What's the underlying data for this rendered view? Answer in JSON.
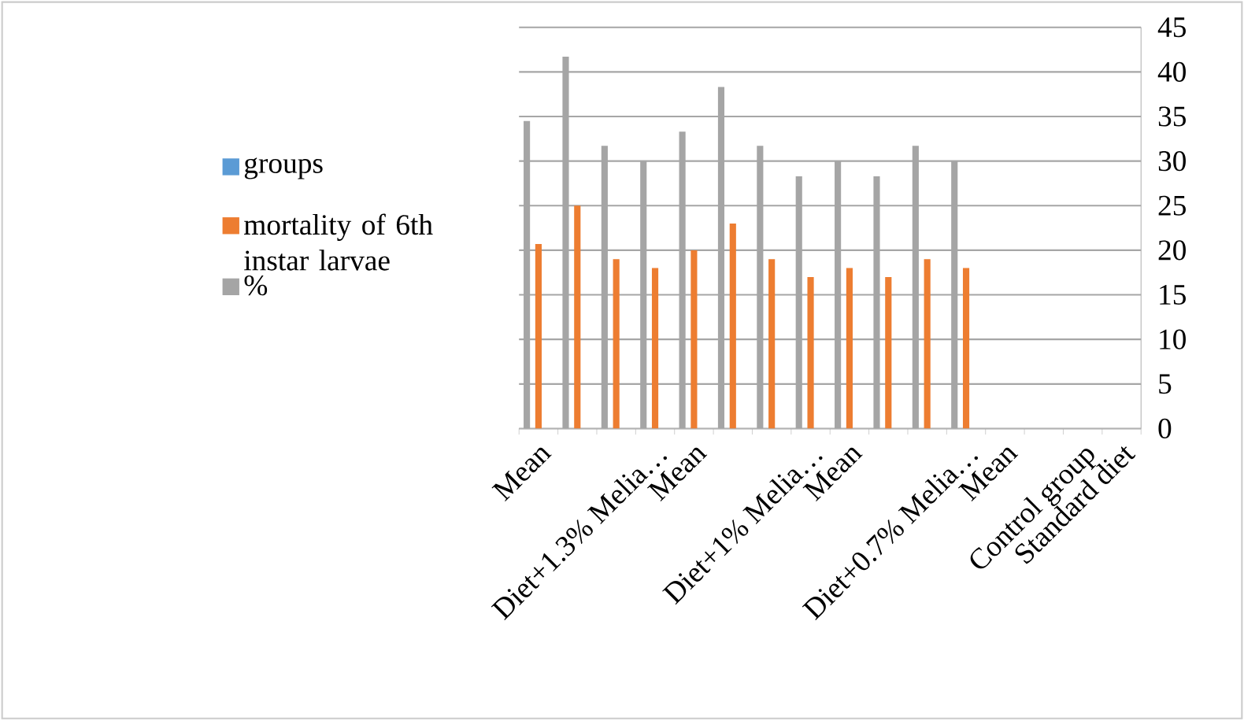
{
  "chart_data": {
    "type": "bar",
    "categories": [
      "Mean",
      null,
      null,
      "Diet+1.3% Melia…",
      "Mean",
      null,
      null,
      "Diet+1% Melia…",
      "Mean",
      null,
      null,
      "Diet+0.7% Melia…",
      "Mean",
      null,
      "Control group",
      "Standard diet"
    ],
    "series": [
      {
        "name": "groups",
        "color": "#5b9bd5",
        "values": [
          null,
          null,
          null,
          null,
          null,
          null,
          null,
          null,
          null,
          null,
          null,
          null,
          null,
          null,
          null,
          null
        ]
      },
      {
        "name": "mortality of 6th instar larvae",
        "color": "#ed7d31",
        "values": [
          20.7,
          25,
          19,
          18,
          20,
          23,
          19,
          17,
          18,
          17,
          19,
          18,
          null,
          null,
          null,
          null
        ]
      },
      {
        "name": "%",
        "color": "#a5a5a5",
        "values": [
          34.5,
          41.7,
          31.7,
          30,
          33.3,
          38.3,
          31.7,
          28.3,
          30,
          28.3,
          31.7,
          30,
          null,
          null,
          null,
          null
        ]
      }
    ],
    "ylim": [
      0,
      45
    ],
    "yticks": [
      0,
      5,
      10,
      15,
      20,
      25,
      30,
      35,
      40,
      45
    ],
    "grid": "y",
    "legend": "left"
  }
}
